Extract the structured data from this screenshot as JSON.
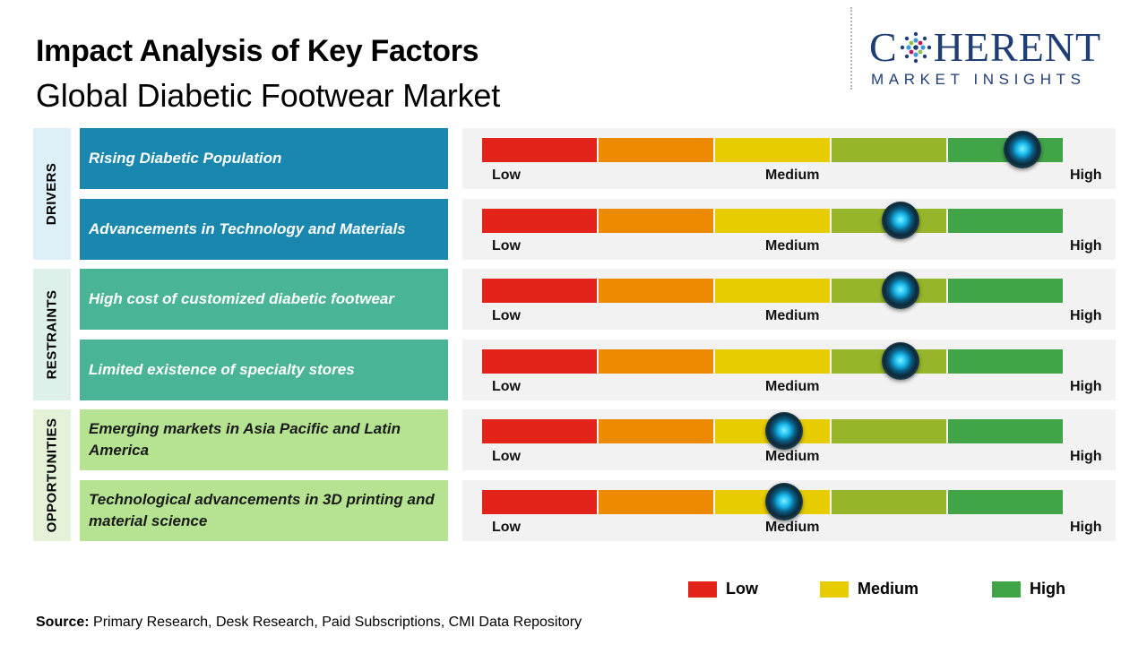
{
  "header": {
    "title": "Impact Analysis of Key Factors",
    "subtitle": "Global Diabetic Footwear Market"
  },
  "logo": {
    "brand_first": "C",
    "brand_rest": "HERENT",
    "tagline": "MARKET INSIGHTS",
    "color": "#1f3e74"
  },
  "chart_data": {
    "type": "table",
    "scale_levels": [
      "Low",
      "Medium",
      "High"
    ],
    "segment_colors": [
      "#e2231a",
      "#ee8a00",
      "#e6cc00",
      "#97b52a",
      "#41a447"
    ],
    "categories": [
      {
        "name": "DRIVERS",
        "label_bg": "#ddf0f7",
        "factor_bg": "#1a87ae",
        "light": false
      },
      {
        "name": "RESTRAINTS",
        "label_bg": "#ddf0ea",
        "factor_bg": "#4ab496",
        "light": false
      },
      {
        "name": "OPPORTUNITIES",
        "label_bg": "#e4f3d7",
        "factor_bg": "#b6e391",
        "light": true
      }
    ],
    "factors": [
      {
        "category": "DRIVERS",
        "label": "Rising Diabetic Population",
        "impact": 0.93
      },
      {
        "category": "DRIVERS",
        "label": "Advancements in Technology and Materials",
        "impact": 0.72
      },
      {
        "category": "RESTRAINTS",
        "label": "High cost of customized diabetic footwear",
        "impact": 0.72
      },
      {
        "category": "RESTRAINTS",
        "label": "Limited existence of specialty stores",
        "impact": 0.72
      },
      {
        "category": "OPPORTUNITIES",
        "label": "Emerging markets in Asia Pacific and Latin America",
        "impact": 0.52
      },
      {
        "category": "OPPORTUNITIES",
        "label": "Technological advancements in 3D printing and material science",
        "impact": 0.52
      }
    ],
    "legend": [
      {
        "label": "Low",
        "color": "#e2231a"
      },
      {
        "label": "Medium",
        "color": "#e6cc00"
      },
      {
        "label": "High",
        "color": "#41a447"
      }
    ]
  },
  "footer": {
    "source_label": "Source:",
    "source_text": " Primary Research, Desk Research, Paid Subscriptions, CMI Data Repository"
  }
}
